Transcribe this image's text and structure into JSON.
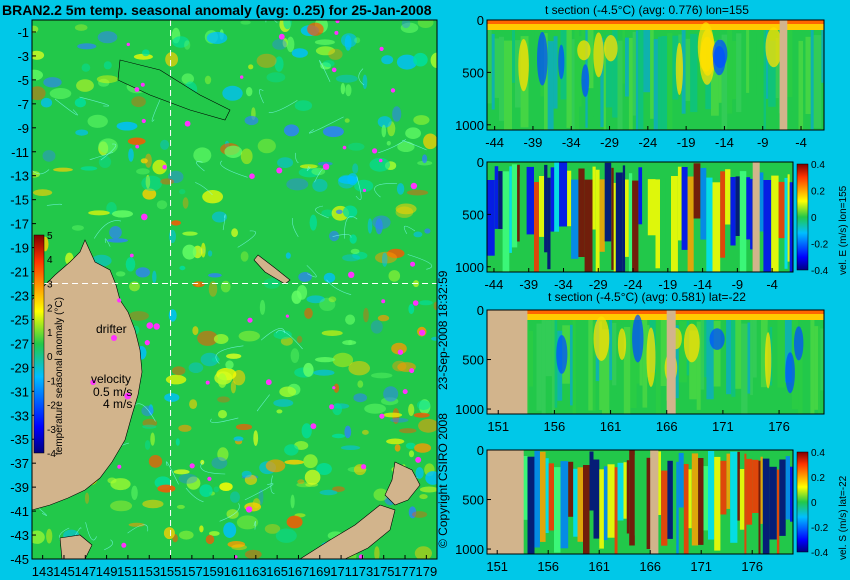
{
  "chart_data": [
    {
      "type": "heatmap",
      "title": "BRAN2.2 5m temp. seasonal anomaly (avg: 0.25) for 25-Jan-2008",
      "x_ticks": [
        "143",
        "145",
        "147",
        "149",
        "151",
        "153",
        "155",
        "157",
        "159",
        "161",
        "163",
        "165",
        "167",
        "169",
        "171",
        "173",
        "175",
        "177",
        "179"
      ],
      "y_ticks": [
        "-1",
        "-3",
        "-5",
        "-7",
        "-9",
        "-11",
        "-13",
        "-15",
        "-17",
        "-19",
        "-21",
        "-23",
        "-25",
        "-27",
        "-29",
        "-31",
        "-33",
        "-35",
        "-37",
        "-39",
        "-41",
        "-43",
        "-45"
      ],
      "xlim": [
        142,
        180
      ],
      "ylim": [
        -45,
        0
      ],
      "section_lines": {
        "lon": 155,
        "lat": -22
      },
      "colorbar": {
        "label": "temperature seasonal anomaly (°C)",
        "ticks": [
          "5",
          "4",
          "3",
          "2",
          "1",
          "0",
          "-1",
          "-2",
          "-3",
          "-4"
        ],
        "range": [
          -4,
          5
        ]
      },
      "annotations": {
        "drifter": "drifter",
        "velocity": "velocity",
        "speed": "0.5 m/s",
        "scale": "4 m/s"
      }
    },
    {
      "type": "heatmap",
      "title": "t section (-4.5°C) (avg: 0.776) lon=155",
      "x_ticks": [
        "-44",
        "-39",
        "-34",
        "-29",
        "-24",
        "-19",
        "-14",
        "-9",
        "-4"
      ],
      "y_ticks": [
        "0",
        "500",
        "1000"
      ],
      "xlim": [
        -45,
        -1
      ],
      "ylim": [
        1050,
        0
      ]
    },
    {
      "type": "heatmap",
      "title": "",
      "x_ticks": [
        "-44",
        "-39",
        "-34",
        "-29",
        "-24",
        "-19",
        "-14",
        "-9",
        "-4"
      ],
      "y_ticks": [
        "0",
        "500",
        "1000"
      ],
      "xlim": [
        -45,
        -1
      ],
      "ylim": [
        1050,
        0
      ],
      "colorbar": {
        "label": "vel. E (m/s) lon=155",
        "ticks": [
          "0.4",
          "0.2",
          "0",
          "-0.2",
          "-0.4"
        ],
        "range": [
          -0.4,
          0.4
        ]
      }
    },
    {
      "type": "heatmap",
      "title": "t section (-4.5°C) (avg: 0.581) lat=-22",
      "x_ticks": [
        "151",
        "156",
        "161",
        "166",
        "171",
        "176"
      ],
      "y_ticks": [
        "0",
        "500",
        "1000"
      ],
      "xlim": [
        150,
        180
      ],
      "ylim": [
        1050,
        0
      ]
    },
    {
      "type": "heatmap",
      "title": "",
      "x_ticks": [
        "151",
        "156",
        "161",
        "166",
        "171",
        "176"
      ],
      "y_ticks": [
        "0",
        "500",
        "1000"
      ],
      "xlim": [
        150,
        180
      ],
      "ylim": [
        1050,
        0
      ],
      "colorbar": {
        "label": "vel. S (m/s) lat=-22",
        "ticks": [
          "0.4",
          "0.2",
          "0",
          "-0.2",
          "-0.4"
        ],
        "range": [
          -0.4,
          0.4
        ]
      }
    }
  ],
  "side_text": {
    "timestamp": "23-Sep-2008 18:32:59",
    "copyright": "© Copyright CSIRO 2008"
  },
  "colors": {
    "background": "#00c8e8",
    "land": "#d2b48c",
    "ocean_base": "#22c84a",
    "contour": "#7fffff",
    "drifter": "#ff33ff"
  }
}
